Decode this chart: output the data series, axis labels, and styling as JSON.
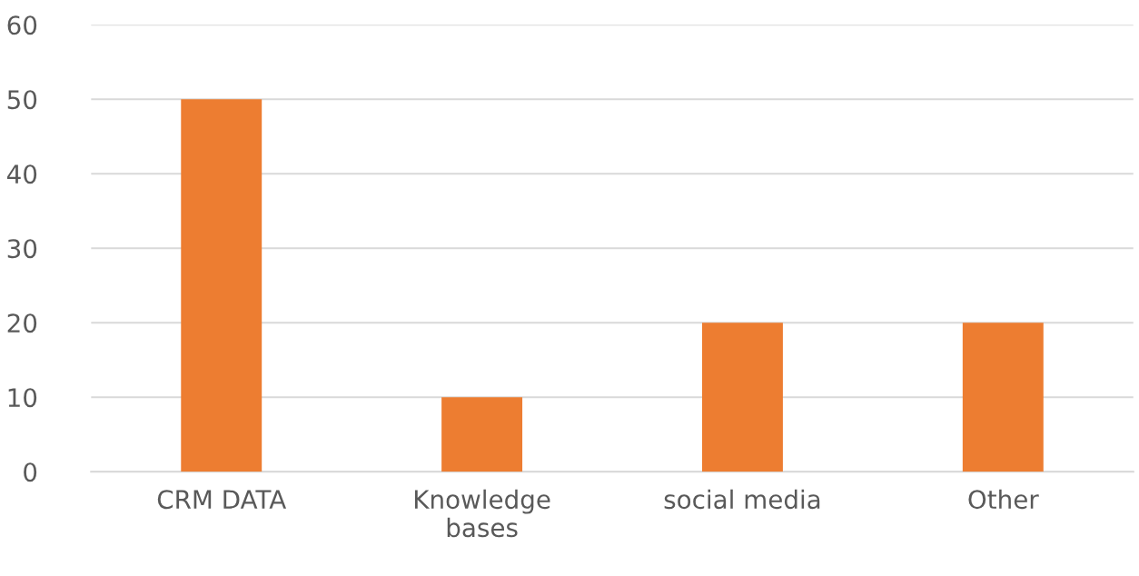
{
  "chart_data": {
    "type": "bar",
    "categories": [
      "CRM DATA",
      "Knowledge\nbases",
      "social media",
      "Other"
    ],
    "values": [
      50,
      10,
      20,
      20
    ],
    "color": "#ed7d31",
    "ylim": [
      0,
      60
    ],
    "yticks": [
      0,
      10,
      20,
      30,
      40,
      50,
      60
    ],
    "grid": "y",
    "legend": false
  }
}
